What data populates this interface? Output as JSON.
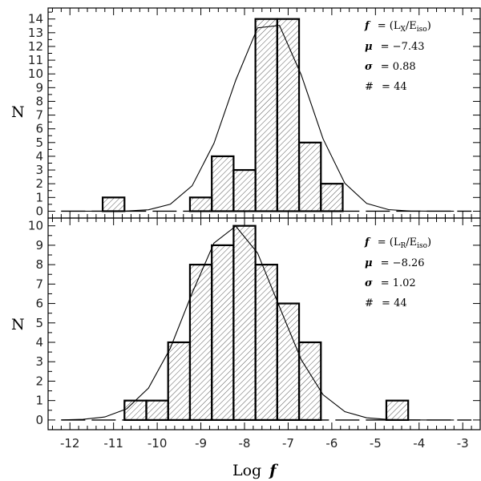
{
  "chart_data": [
    {
      "type": "bar",
      "panel": "top",
      "xlabel": "Log f",
      "ylabel": "N",
      "xlim": [
        -12.5,
        -2.6
      ],
      "ylim": [
        -0.5,
        14.8
      ],
      "xticks": [
        "-12",
        "-11",
        "-10",
        "-9",
        "-8",
        "-7",
        "-6",
        "-5",
        "-4",
        "-3"
      ],
      "yticks": [
        "0",
        "1",
        "2",
        "3",
        "4",
        "5",
        "6",
        "7",
        "8",
        "9",
        "10",
        "11",
        "12",
        "13",
        "14"
      ],
      "bin_edges": [
        -11.25,
        -10.75,
        -10.25,
        -9.75,
        -9.25,
        -8.75,
        -8.25,
        -7.75,
        -7.25,
        -6.75,
        -6.25,
        -5.75
      ],
      "values": [
        1,
        0,
        0,
        0,
        1,
        4,
        3,
        14,
        14,
        5,
        2
      ],
      "gaussian": {
        "mu": -7.43,
        "sigma": 0.88,
        "scale": 14.0,
        "xmin": -12.2,
        "xmax": -2.8
      },
      "annotations": {
        "f_label": "f",
        "f_value": "= (L",
        "f_sub1": "X",
        "f_mid": "/E",
        "f_sub2": "iso",
        "f_end": ")",
        "mu_label": "μ",
        "mu_value": "= −7.43",
        "sigma_label": "σ",
        "sigma_value": "=  0.88",
        "n_label": "#",
        "n_value": "= 44"
      }
    },
    {
      "type": "bar",
      "panel": "bottom",
      "xlabel": "Log f",
      "ylabel": "N",
      "xlim": [
        -12.5,
        -2.6
      ],
      "ylim": [
        -0.5,
        10.4
      ],
      "xticks": [
        "-12",
        "-11",
        "-10",
        "-9",
        "-8",
        "-7",
        "-6",
        "-5",
        "-4",
        "-3"
      ],
      "yticks": [
        "0",
        "1",
        "2",
        "3",
        "4",
        "5",
        "6",
        "7",
        "8",
        "9",
        "10"
      ],
      "bin_edges": [
        -10.75,
        -10.25,
        -9.75,
        -9.25,
        -8.75,
        -8.25,
        -7.75,
        -7.25,
        -6.75,
        -6.25,
        -5.75,
        -5.25,
        -4.75,
        -4.25
      ],
      "values": [
        1,
        1,
        4,
        8,
        9,
        10,
        8,
        6,
        4,
        0,
        0,
        0,
        1
      ],
      "gaussian": {
        "mu": -8.26,
        "sigma": 1.02,
        "scale": 10.0,
        "xmin": -12.2,
        "xmax": -2.8
      },
      "annotations": {
        "f_label": "f",
        "f_value": "= (L",
        "f_sub1": "R",
        "f_mid": "/E",
        "f_sub2": "iso",
        "f_end": ")",
        "mu_label": "μ",
        "mu_value": "= −8.26",
        "sigma_label": "σ",
        "sigma_value": "=  1.02",
        "n_label": "#",
        "n_value": "= 44"
      }
    }
  ],
  "axis_labels": {
    "x_prefix": "Log",
    "x_var": "f",
    "y_top": "N",
    "y_bottom": "N"
  }
}
